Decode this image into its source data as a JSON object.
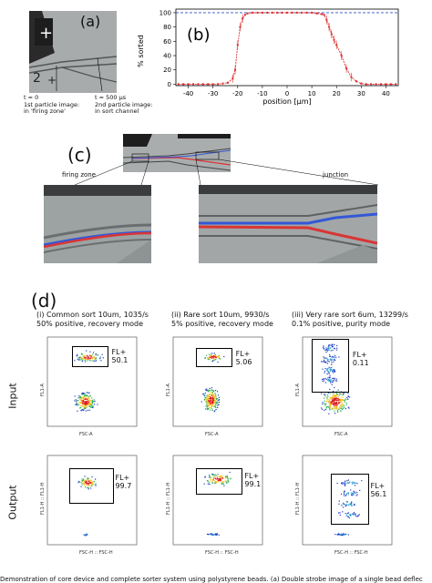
{
  "panel_a": {
    "letter": "(a)",
    "t0_lines": [
      "t = 0",
      "1st particle image:",
      "in 'firing zone'"
    ],
    "t500_lines": [
      "t = 500 µs",
      "2nd particle image:",
      "in sort channel"
    ]
  },
  "panel_b": {
    "letter": "(b)"
  },
  "chart_data": {
    "type": "line",
    "xlabel": "position [µm]",
    "ylabel": "% sorted",
    "xlim": [
      -45,
      45
    ],
    "ylim": [
      -2,
      105
    ],
    "xticks": [
      -40,
      -30,
      -20,
      -10,
      0,
      10,
      20,
      30,
      40
    ],
    "yticks": [
      0,
      20,
      40,
      60,
      80,
      100
    ],
    "reference_line": 100,
    "x": [
      -44,
      -42,
      -40,
      -38,
      -36,
      -34,
      -32,
      -30,
      -28,
      -26,
      -24,
      -22,
      -21,
      -20,
      -19,
      -18,
      -17,
      -16,
      -14,
      -12,
      -10,
      -8,
      -6,
      -4,
      -2,
      0,
      2,
      4,
      6,
      8,
      10,
      12,
      14,
      15,
      16,
      17,
      18,
      19,
      20,
      22,
      24,
      26,
      28,
      30,
      32,
      34,
      36,
      38,
      40,
      42,
      44
    ],
    "y": [
      0,
      0,
      0,
      0,
      0,
      0,
      0,
      0,
      0,
      1,
      2,
      8,
      20,
      55,
      80,
      92,
      97,
      99,
      100,
      100,
      100,
      100,
      100,
      100,
      100,
      100,
      100,
      100,
      100,
      100,
      100,
      99,
      98,
      97,
      90,
      80,
      70,
      62,
      55,
      40,
      22,
      10,
      4,
      1,
      0,
      0,
      0,
      0,
      0,
      0,
      0
    ],
    "grid": false
  },
  "panel_c": {
    "letter": "(c)",
    "left_label": "firing zone",
    "right_label": "junction"
  },
  "panel_d": {
    "letter": "(d)",
    "columns": [
      {
        "title_lines": [
          "(i) Common sort 10um, 1035/s",
          "50% positive, recovery mode"
        ]
      },
      {
        "title_lines": [
          "(ii) Rare sort 10um, 9930/s",
          "5% positive, recovery mode"
        ]
      },
      {
        "title_lines": [
          "(iii) Very rare sort 6um, 13299/s",
          "0.1% positive, purity mode"
        ]
      }
    ],
    "rows": [
      {
        "label": "Input",
        "xaxis": "FSC-A",
        "yaxis": "FL1-A",
        "gates": [
          {
            "name": "FL+",
            "value": "50.1"
          },
          {
            "name": "FL+",
            "value": "5.06"
          },
          {
            "name": "FL+",
            "value": "0.11"
          }
        ]
      },
      {
        "label": "Output",
        "xaxis": "FSC-H :: FSC-H",
        "yaxis": "FL1-H :: FL1-H",
        "gates": [
          {
            "name": "FL+",
            "value": "99.7"
          },
          {
            "name": "FL+",
            "value": "99.1"
          },
          {
            "name": "FL+",
            "value": "56.1"
          }
        ]
      }
    ]
  },
  "caption": "Demonstration of core device and complete sorter system using polystyrene beads. (a) Double strobe image of a single bead deflec"
}
